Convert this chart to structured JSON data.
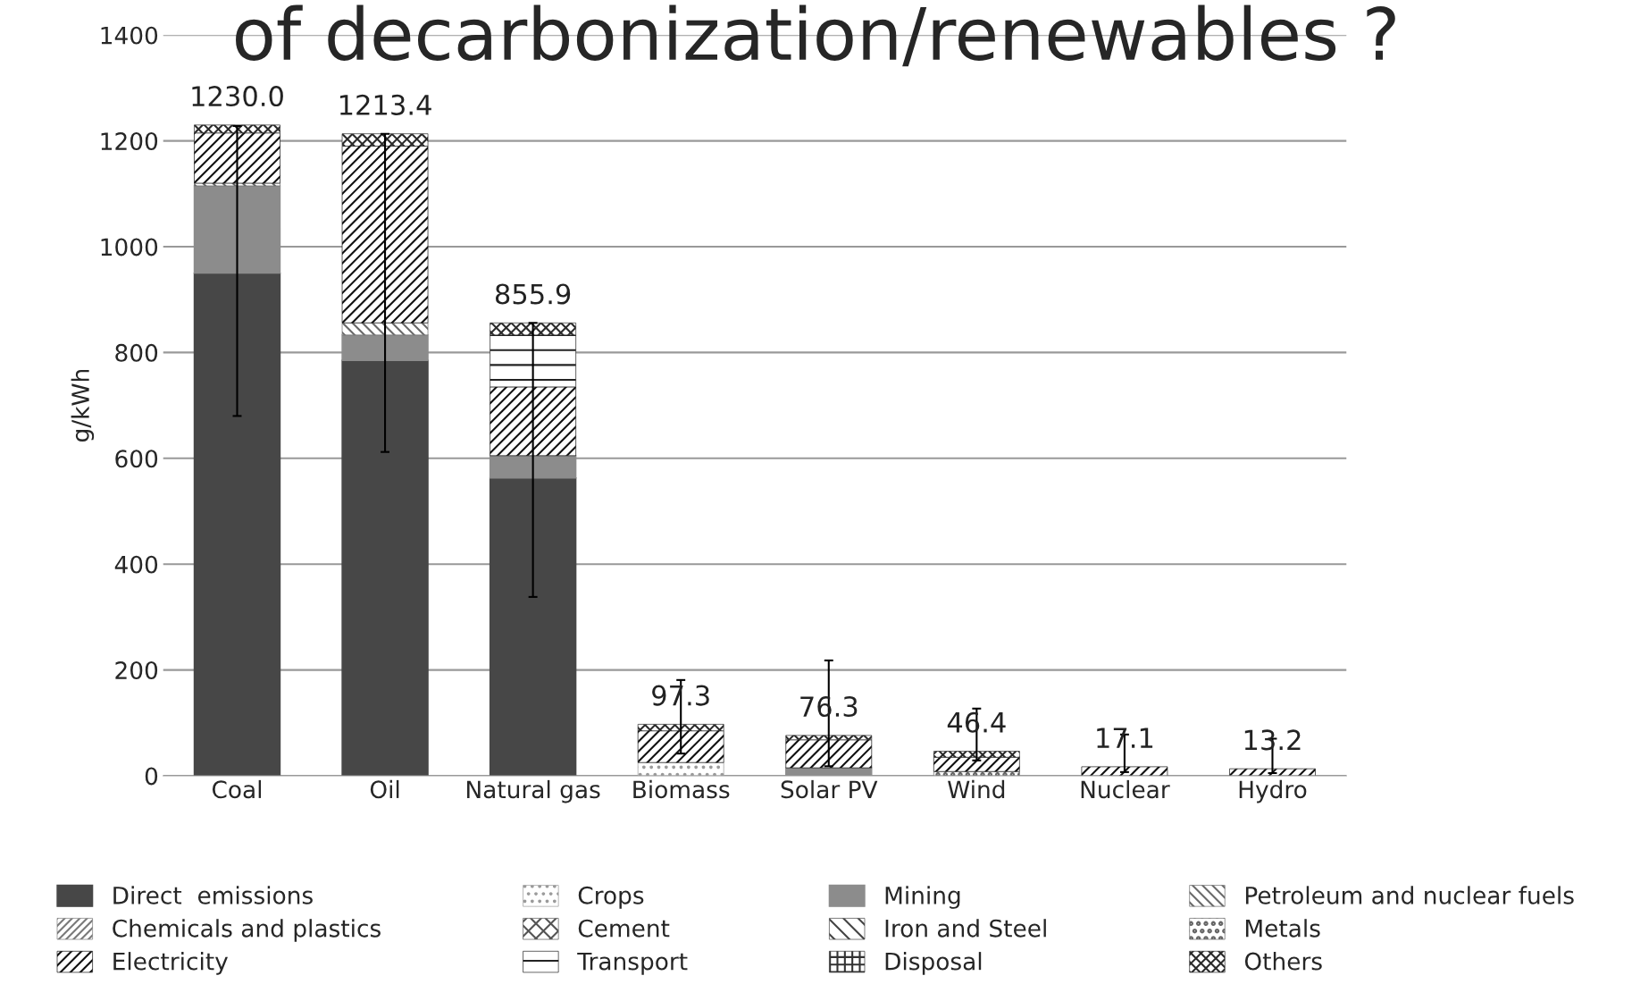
{
  "chart_data": {
    "type": "bar",
    "title": "of decarbonization/renewables ?",
    "ylabel": "g/kWh",
    "categories": [
      "Coal",
      "Oil",
      "Natural gas",
      "Biomass",
      "Solar PV",
      "Wind",
      "Nuclear",
      "Hydro"
    ],
    "stacked": true,
    "series": [
      {
        "name": "Direct  emissions",
        "color": "#474747",
        "values": [
          950,
          785,
          563,
          null,
          null,
          null,
          null,
          null
        ]
      },
      {
        "name": "Crops",
        "color": "#9a9a9a",
        "values": [
          null,
          null,
          null,
          25,
          null,
          null,
          null,
          null
        ]
      },
      {
        "name": "Mining",
        "color": "#8c8c8c",
        "values": [
          165,
          48,
          42,
          null,
          15,
          null,
          null,
          null
        ]
      },
      {
        "name": "Petroleum and nuclear fuels",
        "color": "#6a6a6a",
        "values": [
          5,
          23,
          null,
          null,
          null,
          null,
          null,
          null
        ]
      },
      {
        "name": "Chemicals and plastics",
        "color": "#7a7a7a",
        "values": [
          null,
          null,
          null,
          null,
          null,
          null,
          null,
          null
        ]
      },
      {
        "name": "Cement",
        "color": "#555555",
        "values": [
          null,
          null,
          null,
          null,
          null,
          null,
          null,
          null
        ]
      },
      {
        "name": "Iron and Steel",
        "color": "#444444",
        "values": [
          null,
          null,
          null,
          null,
          null,
          null,
          null,
          null
        ]
      },
      {
        "name": "Metals",
        "color": "#666666",
        "values": [
          null,
          null,
          null,
          null,
          null,
          8,
          null,
          null
        ]
      },
      {
        "name": "Electricity",
        "color": "#111111",
        "values": [
          95,
          334,
          130,
          60,
          53,
          27,
          17.1,
          13.2
        ],
        "errors": [
          null,
          null,
          null,
          null,
          null,
          null,
          [
            7,
            78
          ],
          [
            5,
            70
          ]
        ]
      },
      {
        "name": "Transport",
        "color": "#222222",
        "values": [
          null,
          null,
          98,
          null,
          null,
          null,
          null,
          null
        ]
      },
      {
        "name": "Disposal",
        "color": "#333333",
        "values": [
          null,
          null,
          null,
          null,
          null,
          null,
          null,
          null
        ]
      },
      {
        "name": "Others",
        "color": "#2a2a2a",
        "values": [
          15,
          23.4,
          22.9,
          12.3,
          8.3,
          11.4,
          null,
          null
        ],
        "errors": [
          [
            680,
            1228
          ],
          [
            612,
            1213.4
          ],
          [
            338,
            855.9
          ],
          [
            42,
            181
          ],
          [
            18,
            218
          ],
          [
            29,
            127
          ],
          null,
          null
        ]
      }
    ],
    "totals": [
      "1230.0",
      "1213.4",
      "855.9",
      "97.3",
      "76.3",
      "46.4",
      "17.1",
      "13.2"
    ],
    "ylim": [
      0,
      1400
    ],
    "yticks": [
      0,
      200,
      400,
      600,
      800,
      1000,
      1200,
      1400
    ],
    "grid": "y",
    "legend": "bottom"
  }
}
